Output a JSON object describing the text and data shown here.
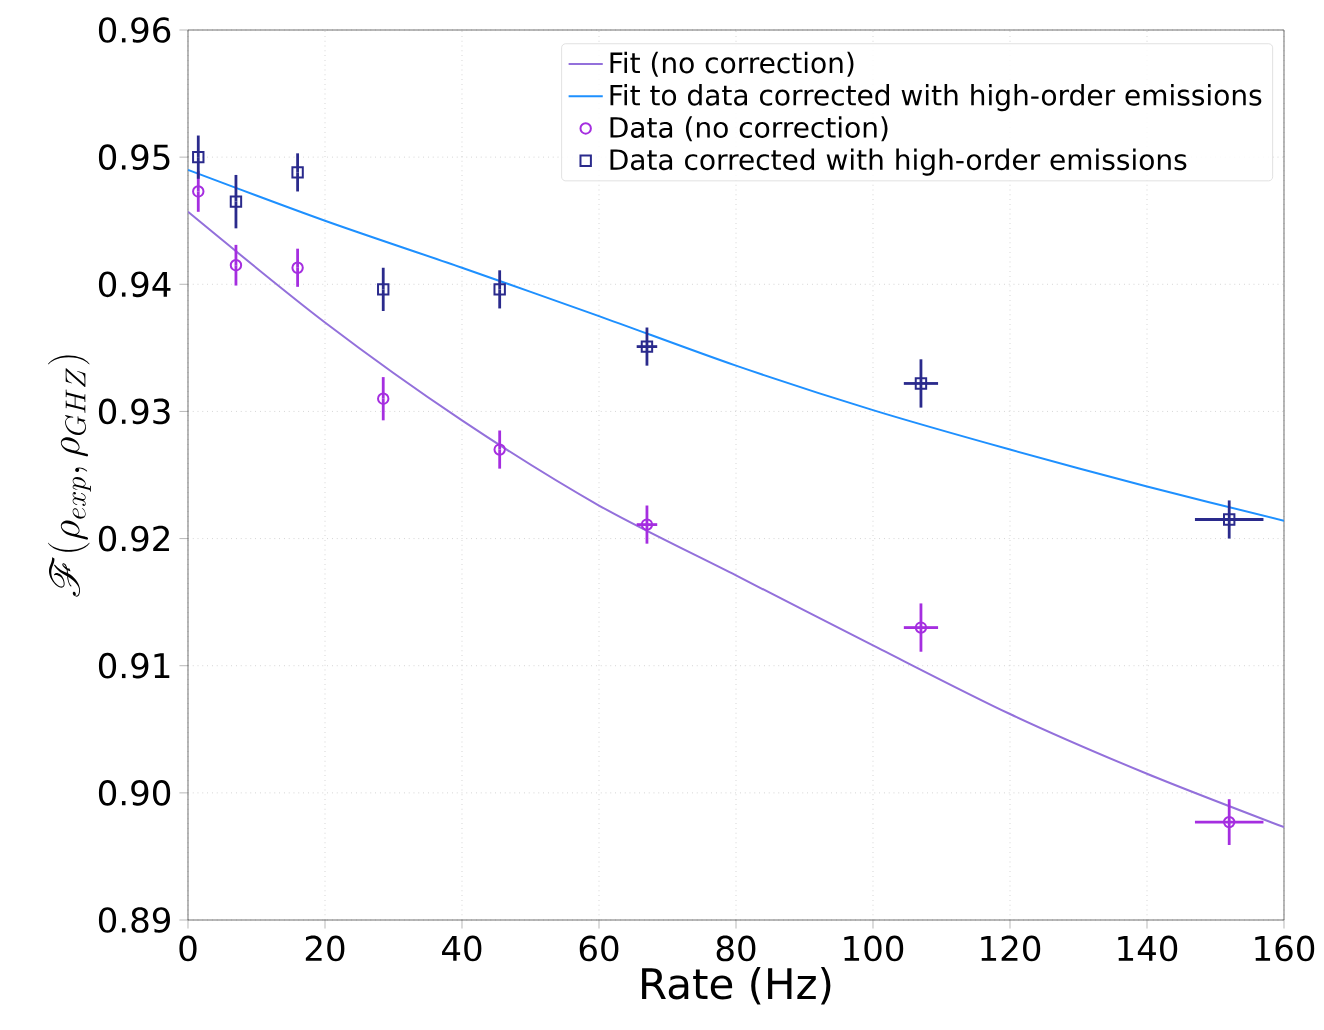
{
  "chart_data": {
    "type": "scatter",
    "xlabel": "Rate (Hz)",
    "ylabel": "\\mathscr{F}(\\rho_{exp}, \\rho_{GHZ})",
    "xlim": [
      0,
      160
    ],
    "ylim": [
      0.89,
      0.96
    ],
    "xticks": [
      0,
      20,
      40,
      60,
      80,
      100,
      120,
      140,
      160
    ],
    "yticks": [
      {
        "value": 0.89,
        "label": "0.89"
      },
      {
        "value": 0.9,
        "label": "0.90"
      },
      {
        "value": 0.91,
        "label": "0.91"
      },
      {
        "value": 0.92,
        "label": "0.92"
      },
      {
        "value": 0.93,
        "label": "0.93"
      },
      {
        "value": 0.94,
        "label": "0.94"
      },
      {
        "value": 0.95,
        "label": "0.95"
      },
      {
        "value": 0.96,
        "label": "0.96"
      }
    ],
    "grid": true,
    "legend": "top right",
    "series": [
      {
        "name": "Fit (no correction)",
        "type": "line",
        "color": "#9370db",
        "marker": "none",
        "x": [
          0,
          20,
          40,
          60,
          80,
          100,
          120,
          140,
          160
        ],
        "values": [
          0.9457,
          0.937,
          0.9293,
          0.9226,
          0.9171,
          0.9116,
          0.9062,
          0.9015,
          0.8973
        ]
      },
      {
        "name": "Fit to data corrected with high-order emissions",
        "type": "line",
        "color": "#1e90ff",
        "marker": "none",
        "x": [
          0,
          20,
          40,
          60,
          80,
          100,
          120,
          140,
          160
        ],
        "values": [
          0.949,
          0.945,
          0.9413,
          0.9375,
          0.9336,
          0.9301,
          0.927,
          0.9241,
          0.9214
        ]
      },
      {
        "name": "Data (no correction)",
        "color": "#a52ee0",
        "marker": "circle",
        "x": [
          1.5,
          7,
          16,
          28.5,
          45.5,
          67,
          107,
          152
        ],
        "values": [
          0.9473,
          0.9415,
          0.9413,
          0.931,
          0.927,
          0.9211,
          0.913,
          0.8977
        ],
        "errors": [
          0.0016,
          0.0016,
          0.0015,
          0.0017,
          0.0015,
          0.0015,
          0.0019,
          0.0018
        ],
        "xerrors": [
          null,
          null,
          null,
          null,
          null,
          1.5,
          2.5,
          5
        ]
      },
      {
        "name": "Data corrected with high-order emissions",
        "color": "#2a2a8c",
        "marker": "square",
        "x": [
          1.5,
          7,
          16,
          28.5,
          45.5,
          67,
          107,
          152
        ],
        "values": [
          0.95,
          0.9465,
          0.9488,
          0.9396,
          0.9396,
          0.9351,
          0.9322,
          0.9215
        ],
        "errors": [
          0.0017,
          0.0021,
          0.0015,
          0.0017,
          0.0015,
          0.0015,
          0.0019,
          0.0015
        ],
        "xerrors": [
          null,
          null,
          null,
          null,
          null,
          1.5,
          2.5,
          5
        ]
      }
    ]
  }
}
